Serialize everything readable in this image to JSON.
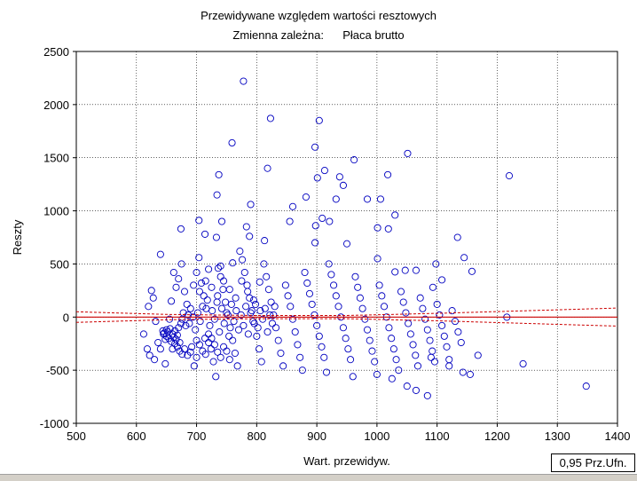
{
  "colors": {
    "points": "#0000c0",
    "fit_line": "#cc0000",
    "background": "#ffffff"
  },
  "badge": {
    "label": "0,95 Prz.Ufn."
  },
  "chart_data": {
    "type": "scatter",
    "title": "Przewidywane względem wartości resztowych",
    "subtitle_label": "Zmienna zależna:",
    "subtitle_value": "Płaca brutto",
    "xlabel": "Wart. przewidyw.",
    "ylabel": "Reszty",
    "xlim": [
      500,
      1400
    ],
    "ylim": [
      -1000,
      2500
    ],
    "xticks": [
      "500",
      "600",
      "700",
      "800",
      "900",
      "1000",
      "1100",
      "1200",
      "1300",
      "1400"
    ],
    "yticks": [
      "-1000",
      "-500",
      "0",
      "500",
      "1000",
      "1500",
      "2000",
      "2500"
    ],
    "grid": true,
    "fit_line": {
      "y": 0
    },
    "confidence_band": {
      "level": 0.95,
      "upper": [
        [
          500,
          50
        ],
        [
          650,
          25
        ],
        [
          800,
          15
        ],
        [
          950,
          15
        ],
        [
          1100,
          35
        ],
        [
          1250,
          60
        ],
        [
          1400,
          85
        ]
      ],
      "lower": [
        [
          500,
          -50
        ],
        [
          650,
          -25
        ],
        [
          800,
          -15
        ],
        [
          950,
          -15
        ],
        [
          1100,
          -35
        ],
        [
          1250,
          -60
        ],
        [
          1400,
          -85
        ]
      ]
    },
    "series": [
      {
        "points": [
          [
            778,
            2220
          ],
          [
            823,
            1870
          ],
          [
            904,
            1850
          ],
          [
            759,
            1640
          ],
          [
            897,
            1600
          ],
          [
            1051,
            1540
          ],
          [
            962,
            1480
          ],
          [
            818,
            1400
          ],
          [
            913,
            1380
          ],
          [
            1018,
            1340
          ],
          [
            1220,
            1330
          ],
          [
            737,
            1340
          ],
          [
            938,
            1320
          ],
          [
            901,
            1310
          ],
          [
            944,
            1240
          ],
          [
            734,
            1150
          ],
          [
            932,
            1110
          ],
          [
            984,
            1110
          ],
          [
            1006,
            1110
          ],
          [
            882,
            1130
          ],
          [
            790,
            1060
          ],
          [
            860,
            1040
          ],
          [
            1030,
            960
          ],
          [
            704,
            910
          ],
          [
            909,
            930
          ],
          [
            921,
            900
          ],
          [
            742,
            900
          ],
          [
            855,
            900
          ],
          [
            783,
            850
          ],
          [
            898,
            860
          ],
          [
            1001,
            840
          ],
          [
            1019,
            830
          ],
          [
            674,
            830
          ],
          [
            714,
            780
          ],
          [
            733,
            750
          ],
          [
            1134,
            750
          ],
          [
            788,
            760
          ],
          [
            813,
            720
          ],
          [
            897,
            700
          ],
          [
            950,
            690
          ],
          [
            1145,
            560
          ],
          [
            1001,
            550
          ],
          [
            1098,
            500
          ],
          [
            1158,
            430
          ],
          [
            640,
            590
          ],
          [
            1065,
            440
          ],
          [
            1047,
            440
          ],
          [
            1030,
            425
          ],
          [
            1108,
            350
          ],
          [
            1093,
            280
          ],
          [
            1216,
            -1
          ],
          [
            1243,
            -440
          ],
          [
            1348,
            -650
          ],
          [
            1168,
            -360
          ],
          [
            1143,
            -520
          ],
          [
            1155,
            -540
          ],
          [
            1120,
            -400
          ],
          [
            1084,
            -740
          ],
          [
            1065,
            -690
          ],
          [
            1050,
            -650
          ],
          [
            1025,
            -580
          ],
          [
            1090,
            -380
          ],
          [
            620,
            100
          ],
          [
            625,
            250
          ],
          [
            628,
            180
          ],
          [
            632,
            -40
          ],
          [
            636,
            -240
          ],
          [
            640,
            -300
          ],
          [
            645,
            -160
          ],
          [
            650,
            -120
          ],
          [
            612,
            -160
          ],
          [
            618,
            -300
          ],
          [
            622,
            -360
          ],
          [
            630,
            -400
          ],
          [
            648,
            -440
          ],
          [
            655,
            -20
          ],
          [
            658,
            150
          ],
          [
            662,
            420
          ],
          [
            666,
            280
          ],
          [
            670,
            360
          ],
          [
            675,
            500
          ],
          [
            680,
            240
          ],
          [
            684,
            120
          ],
          [
            688,
            -60
          ],
          [
            692,
            -280
          ],
          [
            696,
            -460
          ],
          [
            700,
            -380
          ],
          [
            704,
            560
          ],
          [
            708,
            320
          ],
          [
            712,
            200
          ],
          [
            716,
            80
          ],
          [
            720,
            -160
          ],
          [
            724,
            -300
          ],
          [
            728,
            -420
          ],
          [
            732,
            -560
          ],
          [
            736,
            460
          ],
          [
            740,
            380
          ],
          [
            744,
            260
          ],
          [
            748,
            140
          ],
          [
            752,
            20
          ],
          [
            756,
            -100
          ],
          [
            760,
            -220
          ],
          [
            764,
            -340
          ],
          [
            768,
            -460
          ],
          [
            772,
            620
          ],
          [
            776,
            540
          ],
          [
            780,
            420
          ],
          [
            784,
            300
          ],
          [
            788,
            180
          ],
          [
            792,
            60
          ],
          [
            796,
            -60
          ],
          [
            800,
            -180
          ],
          [
            804,
            -300
          ],
          [
            808,
            -420
          ],
          [
            812,
            500
          ],
          [
            816,
            380
          ],
          [
            820,
            260
          ],
          [
            824,
            140
          ],
          [
            828,
            20
          ],
          [
            832,
            -100
          ],
          [
            836,
            -220
          ],
          [
            840,
            -340
          ],
          [
            844,
            -460
          ],
          [
            848,
            300
          ],
          [
            852,
            200
          ],
          [
            856,
            100
          ],
          [
            860,
            -20
          ],
          [
            864,
            -140
          ],
          [
            868,
            -260
          ],
          [
            872,
            -380
          ],
          [
            876,
            -500
          ],
          [
            880,
            420
          ],
          [
            884,
            320
          ],
          [
            888,
            220
          ],
          [
            892,
            120
          ],
          [
            896,
            20
          ],
          [
            900,
            -80
          ],
          [
            904,
            -180
          ],
          [
            908,
            -280
          ],
          [
            912,
            -380
          ],
          [
            916,
            -520
          ],
          [
            920,
            500
          ],
          [
            924,
            400
          ],
          [
            928,
            300
          ],
          [
            932,
            200
          ],
          [
            936,
            100
          ],
          [
            940,
            0
          ],
          [
            944,
            -100
          ],
          [
            948,
            -200
          ],
          [
            952,
            -300
          ],
          [
            956,
            -400
          ],
          [
            960,
            -560
          ],
          [
            964,
            380
          ],
          [
            968,
            280
          ],
          [
            972,
            180
          ],
          [
            976,
            80
          ],
          [
            980,
            -20
          ],
          [
            984,
            -120
          ],
          [
            988,
            -220
          ],
          [
            992,
            -320
          ],
          [
            996,
            -420
          ],
          [
            1000,
            -540
          ],
          [
            1004,
            300
          ],
          [
            1008,
            200
          ],
          [
            1012,
            100
          ],
          [
            1016,
            0
          ],
          [
            1020,
            -100
          ],
          [
            1024,
            -200
          ],
          [
            1028,
            -300
          ],
          [
            1032,
            -400
          ],
          [
            1036,
            -500
          ],
          [
            1040,
            240
          ],
          [
            1044,
            140
          ],
          [
            1048,
            40
          ],
          [
            1052,
            -60
          ],
          [
            1056,
            -160
          ],
          [
            1060,
            -260
          ],
          [
            1064,
            -360
          ],
          [
            1068,
            -460
          ],
          [
            1072,
            180
          ],
          [
            1076,
            80
          ],
          [
            1080,
            -20
          ],
          [
            1084,
            -120
          ],
          [
            1088,
            -220
          ],
          [
            1092,
            -320
          ],
          [
            1096,
            -420
          ],
          [
            1100,
            120
          ],
          [
            1104,
            20
          ],
          [
            1108,
            -80
          ],
          [
            1112,
            -180
          ],
          [
            1116,
            -280
          ],
          [
            1120,
            -460
          ],
          [
            1125,
            60
          ],
          [
            1130,
            -40
          ],
          [
            1135,
            -140
          ],
          [
            1140,
            -240
          ],
          [
            650,
            -180
          ],
          [
            652,
            -140
          ],
          [
            654,
            -200
          ],
          [
            656,
            -110
          ],
          [
            658,
            -230
          ],
          [
            660,
            -160
          ],
          [
            662,
            -190
          ],
          [
            664,
            -130
          ],
          [
            666,
            -210
          ],
          [
            668,
            -170
          ],
          [
            646,
            -150
          ],
          [
            648,
            -210
          ],
          [
            644,
            -130
          ],
          [
            670,
            -100
          ],
          [
            672,
            -240
          ],
          [
            674,
            -60
          ],
          [
            676,
            -20
          ],
          [
            678,
            40
          ],
          [
            682,
            -80
          ],
          [
            686,
            20
          ],
          [
            690,
            80
          ],
          [
            694,
            0
          ],
          [
            698,
            -120
          ],
          [
            702,
            40
          ],
          [
            706,
            -40
          ],
          [
            710,
            100
          ],
          [
            714,
            -200
          ],
          [
            718,
            160
          ],
          [
            722,
            -80
          ],
          [
            726,
            60
          ],
          [
            730,
            -20
          ],
          [
            734,
            140
          ],
          [
            738,
            -140
          ],
          [
            742,
            80
          ],
          [
            746,
            -60
          ],
          [
            750,
            40
          ],
          [
            754,
            -180
          ],
          [
            758,
            120
          ],
          [
            762,
            -40
          ],
          [
            766,
            60
          ],
          [
            770,
            -120
          ],
          [
            774,
            20
          ],
          [
            778,
            -80
          ],
          [
            782,
            100
          ],
          [
            786,
            -160
          ],
          [
            790,
            40
          ],
          [
            794,
            -40
          ],
          [
            798,
            120
          ],
          [
            802,
            -100
          ],
          [
            806,
            60
          ],
          [
            810,
            -20
          ],
          [
            814,
            80
          ],
          [
            818,
            -140
          ],
          [
            822,
            20
          ],
          [
            826,
            -60
          ],
          [
            830,
            100
          ],
          [
            700,
            -220
          ],
          [
            705,
            -260
          ],
          [
            710,
            -320
          ],
          [
            715,
            -350
          ],
          [
            720,
            -240
          ],
          [
            725,
            -200
          ],
          [
            730,
            -260
          ],
          [
            735,
            -330
          ],
          [
            740,
            -380
          ],
          [
            745,
            -280
          ],
          [
            750,
            -320
          ],
          [
            755,
            -400
          ],
          [
            690,
            -330
          ],
          [
            685,
            -360
          ],
          [
            680,
            -300
          ],
          [
            676,
            -350
          ],
          [
            672,
            -320
          ],
          [
            668,
            -280
          ],
          [
            664,
            -250
          ],
          [
            660,
            -300
          ],
          [
            695,
            300
          ],
          [
            705,
            240
          ],
          [
            715,
            340
          ],
          [
            725,
            280
          ],
          [
            735,
            200
          ],
          [
            745,
            340
          ],
          [
            755,
            260
          ],
          [
            765,
            180
          ],
          [
            775,
            340
          ],
          [
            785,
            240
          ],
          [
            795,
            160
          ],
          [
            805,
            330
          ],
          [
            700,
            420
          ],
          [
            720,
            450
          ],
          [
            740,
            480
          ],
          [
            760,
            510
          ]
        ]
      }
    ]
  }
}
